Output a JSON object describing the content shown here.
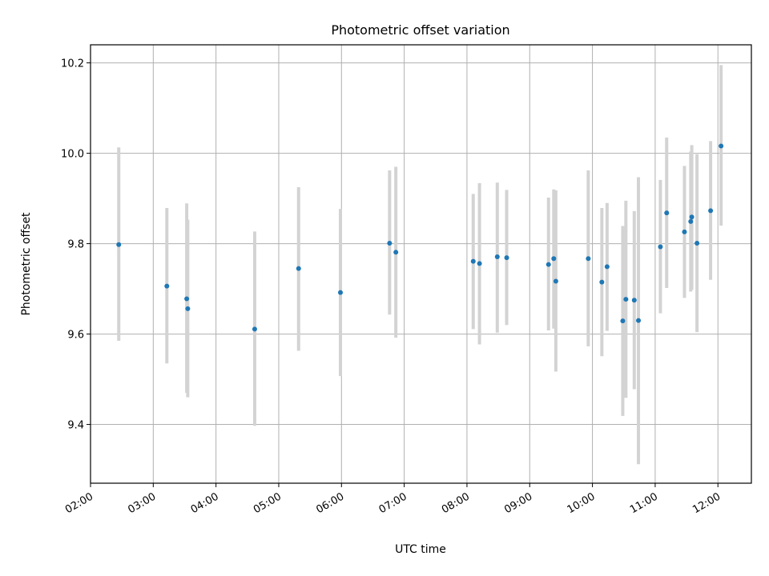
{
  "chart_data": {
    "type": "scatter",
    "title": "Photometric offset variation",
    "xlabel": "UTC time",
    "ylabel": "Photometric offset",
    "x_axis_kind": "time",
    "xlim": [
      "02:00",
      "12:32"
    ],
    "ylim": [
      9.27,
      10.24
    ],
    "grid": true,
    "x_ticks": [
      "02:00",
      "03:00",
      "04:00",
      "05:00",
      "06:00",
      "07:00",
      "08:00",
      "09:00",
      "10:00",
      "11:00",
      "12:00"
    ],
    "y_ticks": [
      9.4,
      9.6,
      9.8,
      10.0,
      10.2
    ],
    "y_tick_labels": [
      "9.4",
      "9.6",
      "9.8",
      "10.0",
      "10.2"
    ],
    "colors": {
      "point": "#1f77b4",
      "errorbar": "#d3d3d3",
      "grid": "#b0b0b0"
    },
    "series": [
      {
        "points": [
          {
            "x": "02:27",
            "y": 9.798,
            "yerr_low": 9.585,
            "yerr_high": 10.013
          },
          {
            "x": "03:13",
            "y": 9.706,
            "yerr_low": 9.535,
            "yerr_high": 9.879
          },
          {
            "x": "03:32",
            "y": 9.678,
            "yerr_low": 9.47,
            "yerr_high": 9.889
          },
          {
            "x": "03:33",
            "y": 9.656,
            "yerr_low": 9.46,
            "yerr_high": 9.853
          },
          {
            "x": "04:37",
            "y": 9.611,
            "yerr_low": 9.397,
            "yerr_high": 9.827
          },
          {
            "x": "05:19",
            "y": 9.745,
            "yerr_low": 9.563,
            "yerr_high": 9.925
          },
          {
            "x": "05:59",
            "y": 9.692,
            "yerr_low": 9.507,
            "yerr_high": 9.877
          },
          {
            "x": "06:46",
            "y": 9.801,
            "yerr_low": 9.643,
            "yerr_high": 9.962
          },
          {
            "x": "06:52",
            "y": 9.781,
            "yerr_low": 9.592,
            "yerr_high": 9.97
          },
          {
            "x": "08:06",
            "y": 9.761,
            "yerr_low": 9.611,
            "yerr_high": 9.91
          },
          {
            "x": "08:12",
            "y": 9.756,
            "yerr_low": 9.577,
            "yerr_high": 9.934
          },
          {
            "x": "08:29",
            "y": 9.771,
            "yerr_low": 9.603,
            "yerr_high": 9.935
          },
          {
            "x": "08:38",
            "y": 9.769,
            "yerr_low": 9.62,
            "yerr_high": 9.919
          },
          {
            "x": "09:18",
            "y": 9.754,
            "yerr_low": 9.608,
            "yerr_high": 9.902
          },
          {
            "x": "09:23",
            "y": 9.767,
            "yerr_low": 9.612,
            "yerr_high": 9.92
          },
          {
            "x": "09:25",
            "y": 9.717,
            "yerr_low": 9.517,
            "yerr_high": 9.918
          },
          {
            "x": "09:56",
            "y": 9.767,
            "yerr_low": 9.573,
            "yerr_high": 9.962
          },
          {
            "x": "10:09",
            "y": 9.715,
            "yerr_low": 9.551,
            "yerr_high": 9.879
          },
          {
            "x": "10:14",
            "y": 9.749,
            "yerr_low": 9.607,
            "yerr_high": 9.89
          },
          {
            "x": "10:29",
            "y": 9.629,
            "yerr_low": 9.419,
            "yerr_high": 9.839
          },
          {
            "x": "10:32",
            "y": 9.677,
            "yerr_low": 9.459,
            "yerr_high": 9.895
          },
          {
            "x": "10:40",
            "y": 9.675,
            "yerr_low": 9.478,
            "yerr_high": 9.872
          },
          {
            "x": "10:44",
            "y": 9.63,
            "yerr_low": 9.312,
            "yerr_high": 9.947
          },
          {
            "x": "11:05",
            "y": 9.793,
            "yerr_low": 9.646,
            "yerr_high": 9.941
          },
          {
            "x": "11:11",
            "y": 9.868,
            "yerr_low": 9.702,
            "yerr_high": 10.035
          },
          {
            "x": "11:28",
            "y": 9.826,
            "yerr_low": 9.68,
            "yerr_high": 9.972
          },
          {
            "x": "11:34",
            "y": 9.849,
            "yerr_low": 9.694,
            "yerr_high": 10.004
          },
          {
            "x": "11:35",
            "y": 9.859,
            "yerr_low": 9.698,
            "yerr_high": 10.018
          },
          {
            "x": "11:40",
            "y": 9.801,
            "yerr_low": 9.604,
            "yerr_high": 9.998
          },
          {
            "x": "11:53",
            "y": 9.873,
            "yerr_low": 9.72,
            "yerr_high": 10.027
          },
          {
            "x": "12:03",
            "y": 10.016,
            "yerr_low": 9.84,
            "yerr_high": 10.195
          }
        ]
      }
    ]
  }
}
